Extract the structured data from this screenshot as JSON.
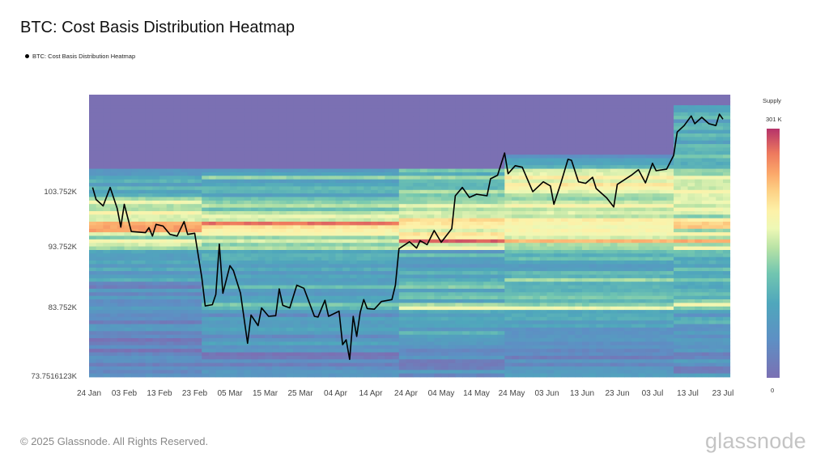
{
  "title": "BTC: Cost Basis Distribution Heatmap",
  "legend": {
    "label": "BTC: Cost Basis Distribution Heatmap",
    "marker_color": "#000000"
  },
  "footer": "© 2025 Glassnode. All Rights Reserved.",
  "logo": "glassnode",
  "chart_data": {
    "type": "heatmap",
    "title": "BTC: Cost Basis Distribution Heatmap",
    "y_scale": "log",
    "ylim": [
      73.75,
      124.3
    ],
    "xlim": [
      "2025-01-24",
      "2025-07-23"
    ],
    "y_ticks": [
      {
        "value": 103.752,
        "label": "103.752K"
      },
      {
        "value": 93.752,
        "label": "93.752K"
      },
      {
        "value": 83.752,
        "label": "83.752K"
      },
      {
        "value": 73.7516123,
        "label": "73.7516123K"
      }
    ],
    "x_ticks": [
      {
        "date": "2025-01-24",
        "label": "24 Jan"
      },
      {
        "date": "2025-02-03",
        "label": "03 Feb"
      },
      {
        "date": "2025-02-13",
        "label": "13 Feb"
      },
      {
        "date": "2025-02-23",
        "label": "23 Feb"
      },
      {
        "date": "2025-03-05",
        "label": "05 Mar"
      },
      {
        "date": "2025-03-15",
        "label": "15 Mar"
      },
      {
        "date": "2025-03-25",
        "label": "25 Mar"
      },
      {
        "date": "2025-04-04",
        "label": "04 Apr"
      },
      {
        "date": "2025-04-14",
        "label": "14 Apr"
      },
      {
        "date": "2025-04-24",
        "label": "24 Apr"
      },
      {
        "date": "2025-05-04",
        "label": "04 May"
      },
      {
        "date": "2025-05-14",
        "label": "14 May"
      },
      {
        "date": "2025-05-24",
        "label": "24 May"
      },
      {
        "date": "2025-06-03",
        "label": "03 Jun"
      },
      {
        "date": "2025-06-13",
        "label": "13 Jun"
      },
      {
        "date": "2025-06-23",
        "label": "23 Jun"
      },
      {
        "date": "2025-07-03",
        "label": "03 Jul"
      },
      {
        "date": "2025-07-13",
        "label": "13 Jul"
      },
      {
        "date": "2025-07-23",
        "label": "23 Jul"
      }
    ],
    "colorbar": {
      "title": "Supply",
      "max_label": "301 K",
      "min_label": "0",
      "max": 301000,
      "min": 0,
      "colorscale": [
        [
          0.0,
          "#7b70b3"
        ],
        [
          0.15,
          "#5e8fc4"
        ],
        [
          0.3,
          "#4fa7bc"
        ],
        [
          0.42,
          "#72c6b0"
        ],
        [
          0.52,
          "#b7e2a5"
        ],
        [
          0.6,
          "#eef8b5"
        ],
        [
          0.67,
          "#fdf1a8"
        ],
        [
          0.75,
          "#fdd185"
        ],
        [
          0.82,
          "#fba86a"
        ],
        [
          0.9,
          "#ee7a5e"
        ],
        [
          1.0,
          "#b5336a"
        ]
      ]
    },
    "heatmap": {
      "period_starts": [
        "2025-01-24",
        "2025-02-25",
        "2025-04-22",
        "2025-05-21",
        "2025-07-09"
      ],
      "supply_top_price_k": [
        108.5,
        108.5,
        108.5,
        111.1,
        122.2
      ],
      "bands": [
        {
          "price_k": [
            111.1,
            122.2
          ],
          "supply_frac": [
            0,
            0,
            0,
            0,
            0.3
          ]
        },
        {
          "price_k": [
            108.5,
            111.1
          ],
          "supply_frac": [
            0,
            0,
            0,
            0.25,
            0.35
          ]
        },
        {
          "price_k": [
            107.2,
            108.5
          ],
          "supply_frac": [
            0.25,
            0.3,
            0.35,
            0.5,
            0.55
          ]
        },
        {
          "price_k": [
            106.2,
            107.2
          ],
          "supply_frac": [
            0.4,
            0.4,
            0.45,
            0.6,
            0.65
          ]
        },
        {
          "price_k": [
            104.8,
            106.2
          ],
          "supply_frac": [
            0.25,
            0.3,
            0.4,
            0.6,
            0.65
          ]
        },
        {
          "price_k": [
            102.7,
            104.8
          ],
          "supply_frac": [
            0.35,
            0.35,
            0.45,
            0.55,
            0.6
          ]
        },
        {
          "price_k": [
            101.9,
            102.7
          ],
          "supply_frac": [
            0.5,
            0.5,
            0.5,
            0.5,
            0.55
          ]
        },
        {
          "price_k": [
            100.1,
            101.9
          ],
          "supply_frac": [
            0.55,
            0.5,
            0.5,
            0.55,
            0.55
          ]
        },
        {
          "price_k": [
            98.9,
            100.1
          ],
          "supply_frac": [
            0.6,
            0.55,
            0.55,
            0.5,
            0.5
          ]
        },
        {
          "price_k": [
            98.0,
            98.9
          ],
          "supply_frac": [
            0.65,
            0.65,
            0.7,
            0.7,
            0.7
          ]
        },
        {
          "price_k": [
            97.3,
            98.0
          ],
          "supply_frac": [
            0.92,
            0.8,
            0.75,
            0.72,
            0.72
          ]
        },
        {
          "price_k": [
            96.4,
            97.3
          ],
          "supply_frac": [
            0.8,
            0.7,
            0.6,
            0.55,
            0.55
          ]
        },
        {
          "price_k": [
            95.2,
            96.4
          ],
          "supply_frac": [
            0.55,
            0.55,
            0.7,
            0.6,
            0.6
          ]
        },
        {
          "price_k": [
            94.4,
            95.2
          ],
          "supply_frac": [
            0.55,
            0.55,
            0.92,
            0.8,
            0.75
          ]
        },
        {
          "price_k": [
            93.2,
            94.4
          ],
          "supply_frac": [
            0.5,
            0.5,
            0.55,
            0.55,
            0.55
          ]
        },
        {
          "price_k": [
            88.5,
            93.2
          ],
          "supply_frac": [
            0.25,
            0.3,
            0.3,
            0.3,
            0.3
          ]
        },
        {
          "price_k": [
            87.8,
            88.5
          ],
          "supply_frac": [
            0.35,
            0.35,
            0.4,
            0.45,
            0.45
          ]
        },
        {
          "price_k": [
            84.5,
            87.8
          ],
          "supply_frac": [
            0.15,
            0.3,
            0.35,
            0.35,
            0.35
          ]
        },
        {
          "price_k": [
            83.3,
            84.5
          ],
          "supply_frac": [
            0.15,
            0.35,
            0.55,
            0.55,
            0.55
          ]
        },
        {
          "price_k": [
            78.0,
            83.3
          ],
          "supply_frac": [
            0.12,
            0.2,
            0.3,
            0.25,
            0.25
          ]
        },
        {
          "price_k": [
            73.75,
            78.0
          ],
          "supply_frac": [
            0.1,
            0.12,
            0.15,
            0.15,
            0.15
          ]
        }
      ]
    },
    "series": [
      {
        "name": "BTC: Cost Basis Distribution Heatmap",
        "color": "#000000",
        "unit": "K USD",
        "points": [
          [
            "2025-01-25",
            104.7
          ],
          [
            "2025-01-26",
            102.4
          ],
          [
            "2025-01-28",
            101.2
          ],
          [
            "2025-01-30",
            104.7
          ],
          [
            "2025-02-01",
            100.7
          ],
          [
            "2025-02-02",
            97.3
          ],
          [
            "2025-02-03",
            101.5
          ],
          [
            "2025-02-05",
            96.5
          ],
          [
            "2025-02-09",
            96.3
          ],
          [
            "2025-02-10",
            97.2
          ],
          [
            "2025-02-11",
            95.7
          ],
          [
            "2025-02-12",
            97.8
          ],
          [
            "2025-02-14",
            97.5
          ],
          [
            "2025-02-16",
            96.0
          ],
          [
            "2025-02-18",
            95.7
          ],
          [
            "2025-02-20",
            98.3
          ],
          [
            "2025-02-21",
            96.0
          ],
          [
            "2025-02-23",
            96.2
          ],
          [
            "2025-02-25",
            88.7
          ],
          [
            "2025-02-26",
            84.1
          ],
          [
            "2025-02-28",
            84.3
          ],
          [
            "2025-03-01",
            85.9
          ],
          [
            "2025-03-02",
            94.3
          ],
          [
            "2025-03-03",
            86.1
          ],
          [
            "2025-03-05",
            90.6
          ],
          [
            "2025-03-06",
            89.8
          ],
          [
            "2025-03-08",
            86.1
          ],
          [
            "2025-03-10",
            78.5
          ],
          [
            "2025-03-11",
            82.7
          ],
          [
            "2025-03-13",
            81.1
          ],
          [
            "2025-03-14",
            83.8
          ],
          [
            "2025-03-16",
            82.5
          ],
          [
            "2025-03-18",
            82.6
          ],
          [
            "2025-03-19",
            86.8
          ],
          [
            "2025-03-20",
            84.2
          ],
          [
            "2025-03-22",
            83.8
          ],
          [
            "2025-03-24",
            87.4
          ],
          [
            "2025-03-26",
            86.9
          ],
          [
            "2025-03-29",
            82.5
          ],
          [
            "2025-03-30",
            82.4
          ],
          [
            "2025-04-01",
            85.0
          ],
          [
            "2025-04-02",
            82.5
          ],
          [
            "2025-04-05",
            83.3
          ],
          [
            "2025-04-06",
            78.3
          ],
          [
            "2025-04-07",
            79.0
          ],
          [
            "2025-04-08",
            76.2
          ],
          [
            "2025-04-09",
            82.5
          ],
          [
            "2025-04-10",
            79.5
          ],
          [
            "2025-04-11",
            83.1
          ],
          [
            "2025-04-12",
            85.1
          ],
          [
            "2025-04-13",
            83.7
          ],
          [
            "2025-04-15",
            83.6
          ],
          [
            "2025-04-17",
            84.8
          ],
          [
            "2025-04-20",
            85.1
          ],
          [
            "2025-04-21",
            87.4
          ],
          [
            "2025-04-22",
            93.5
          ],
          [
            "2025-04-25",
            94.7
          ],
          [
            "2025-04-27",
            93.6
          ],
          [
            "2025-04-28",
            94.9
          ],
          [
            "2025-04-30",
            94.2
          ],
          [
            "2025-05-02",
            96.7
          ],
          [
            "2025-05-04",
            94.6
          ],
          [
            "2025-05-07",
            97.0
          ],
          [
            "2025-05-08",
            103.1
          ],
          [
            "2025-05-10",
            104.7
          ],
          [
            "2025-05-12",
            102.8
          ],
          [
            "2025-05-14",
            103.4
          ],
          [
            "2025-05-17",
            103.1
          ],
          [
            "2025-05-18",
            106.4
          ],
          [
            "2025-05-20",
            107.1
          ],
          [
            "2025-05-22",
            111.6
          ],
          [
            "2025-05-23",
            107.4
          ],
          [
            "2025-05-25",
            109.0
          ],
          [
            "2025-05-27",
            108.7
          ],
          [
            "2025-05-30",
            103.9
          ],
          [
            "2025-06-02",
            105.8
          ],
          [
            "2025-06-04",
            105.0
          ],
          [
            "2025-06-05",
            101.5
          ],
          [
            "2025-06-07",
            105.6
          ],
          [
            "2025-06-09",
            110.3
          ],
          [
            "2025-06-10",
            110.1
          ],
          [
            "2025-06-12",
            105.8
          ],
          [
            "2025-06-14",
            105.5
          ],
          [
            "2025-06-16",
            106.7
          ],
          [
            "2025-06-17",
            104.5
          ],
          [
            "2025-06-20",
            102.7
          ],
          [
            "2025-06-22",
            101.0
          ],
          [
            "2025-06-23",
            105.3
          ],
          [
            "2025-06-27",
            107.1
          ],
          [
            "2025-06-29",
            108.2
          ],
          [
            "2025-07-01",
            105.6
          ],
          [
            "2025-07-03",
            109.5
          ],
          [
            "2025-07-04",
            108.0
          ],
          [
            "2025-07-07",
            108.3
          ],
          [
            "2025-07-09",
            111.1
          ],
          [
            "2025-07-10",
            116.0
          ],
          [
            "2025-07-12",
            117.4
          ],
          [
            "2025-07-14",
            119.5
          ],
          [
            "2025-07-15",
            117.8
          ],
          [
            "2025-07-17",
            119.2
          ],
          [
            "2025-07-19",
            117.8
          ],
          [
            "2025-07-21",
            117.4
          ],
          [
            "2025-07-22",
            119.9
          ],
          [
            "2025-07-23",
            118.8
          ]
        ]
      }
    ]
  }
}
